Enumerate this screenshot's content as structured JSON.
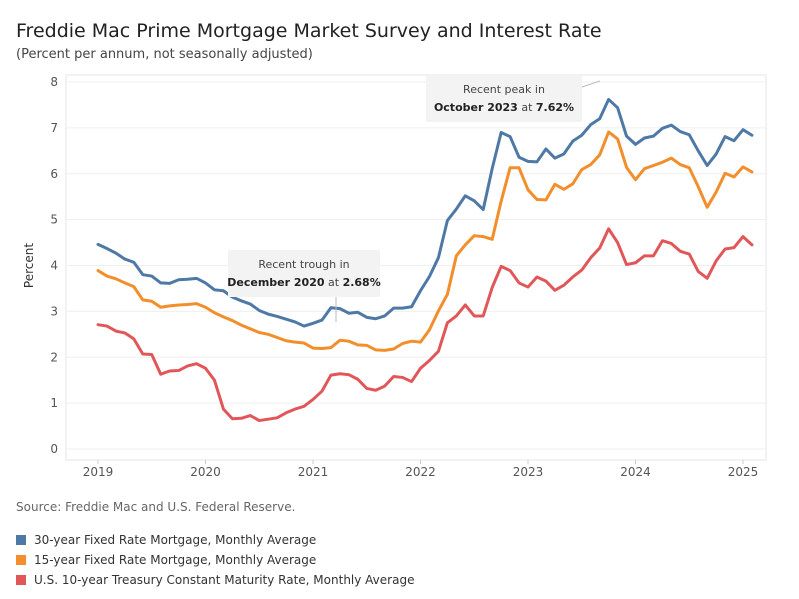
{
  "header": {
    "title": "Freddie Mac Prime Mortgage Market Survey and Interest Rate",
    "subtitle": "(Percent per annum, not seasonally adjusted)"
  },
  "footer": {
    "source": "Source: Freddie Mac and U.S. Federal Reserve."
  },
  "chart_data": {
    "type": "line",
    "title": "Freddie Mac Prime Mortgage Market Survey and Interest Rate",
    "subtitle": "(Percent per annum, not seasonally adjusted)",
    "xlabel": "",
    "ylabel": "Percent",
    "x_start": "2019-01",
    "frequency": "monthly",
    "xlim": [
      2019.0,
      2025.1
    ],
    "ylim": [
      0,
      8
    ],
    "x_ticks": [
      "2019",
      "2020",
      "2021",
      "2022",
      "2023",
      "2024",
      "2025"
    ],
    "y_ticks": [
      0,
      1,
      2,
      3,
      4,
      5,
      6,
      7,
      8
    ],
    "grid": "horizontal",
    "legend_position": "bottom-left",
    "series": [
      {
        "name": "30-year Fixed Rate Mortgage, Monthly Average",
        "color": "#4e79a7",
        "values": [
          4.46,
          4.37,
          4.27,
          4.14,
          4.07,
          3.8,
          3.77,
          3.62,
          3.61,
          3.69,
          3.7,
          3.72,
          3.62,
          3.47,
          3.45,
          3.31,
          3.23,
          3.16,
          3.02,
          2.94,
          2.89,
          2.83,
          2.77,
          2.68,
          2.74,
          2.81,
          3.08,
          3.06,
          2.96,
          2.98,
          2.87,
          2.84,
          2.9,
          3.07,
          3.07,
          3.1,
          3.45,
          3.76,
          4.17,
          4.98,
          5.23,
          5.52,
          5.41,
          5.22,
          6.11,
          6.9,
          6.81,
          6.36,
          6.27,
          6.26,
          6.54,
          6.34,
          6.43,
          6.71,
          6.84,
          7.07,
          7.2,
          7.62,
          7.44,
          6.82,
          6.64,
          6.78,
          6.82,
          6.99,
          7.06,
          6.92,
          6.85,
          6.5,
          6.18,
          6.43,
          6.81,
          6.72,
          6.96,
          6.84
        ]
      },
      {
        "name": "15-year Fixed Rate Mortgage, Monthly Average",
        "color": "#f28e2b",
        "values": [
          3.89,
          3.77,
          3.71,
          3.62,
          3.54,
          3.25,
          3.22,
          3.09,
          3.12,
          3.14,
          3.15,
          3.17,
          3.09,
          2.97,
          2.88,
          2.8,
          2.7,
          2.62,
          2.54,
          2.5,
          2.43,
          2.36,
          2.33,
          2.31,
          2.2,
          2.19,
          2.21,
          2.37,
          2.35,
          2.27,
          2.26,
          2.16,
          2.15,
          2.18,
          2.3,
          2.35,
          2.33,
          2.6,
          3.01,
          3.37,
          4.21,
          4.45,
          4.65,
          4.63,
          4.57,
          5.4,
          6.13,
          6.13,
          5.65,
          5.44,
          5.43,
          5.77,
          5.66,
          5.78,
          6.09,
          6.2,
          6.41,
          6.91,
          6.76,
          6.14,
          5.87,
          6.11,
          6.18,
          6.25,
          6.34,
          6.2,
          6.13,
          5.72,
          5.27,
          5.6,
          6.01,
          5.93,
          6.15,
          6.04
        ]
      },
      {
        "name": "U.S. 10-year Treasury Constant Maturity Rate, Monthly Average",
        "color": "#e15759",
        "values": [
          2.71,
          2.68,
          2.57,
          2.53,
          2.4,
          2.07,
          2.06,
          1.63,
          1.7,
          1.71,
          1.81,
          1.86,
          1.76,
          1.5,
          0.87,
          0.66,
          0.67,
          0.73,
          0.62,
          0.65,
          0.68,
          0.79,
          0.87,
          0.93,
          1.08,
          1.26,
          1.61,
          1.64,
          1.62,
          1.52,
          1.32,
          1.28,
          1.37,
          1.58,
          1.56,
          1.47,
          1.76,
          1.93,
          2.13,
          2.75,
          2.9,
          3.14,
          2.9,
          2.9,
          3.52,
          3.98,
          3.89,
          3.62,
          3.53,
          3.75,
          3.66,
          3.46,
          3.57,
          3.75,
          3.9,
          4.17,
          4.38,
          4.8,
          4.5,
          4.02,
          4.06,
          4.21,
          4.21,
          4.54,
          4.48,
          4.31,
          4.25,
          3.87,
          3.72,
          4.1,
          4.36,
          4.39,
          4.63,
          4.45
        ]
      }
    ],
    "annotations": [
      {
        "line1": "Recent peak in",
        "bold_part": "October 2023",
        "connector": " at ",
        "value_text": "7.62%",
        "x_value": 2023.75,
        "y_value": 7.62
      },
      {
        "line1": "Recent trough in",
        "bold_part": "December 2020",
        "connector": " at ",
        "value_text": "2.68%",
        "x_value": 2020.917,
        "y_value": 2.68
      }
    ]
  }
}
